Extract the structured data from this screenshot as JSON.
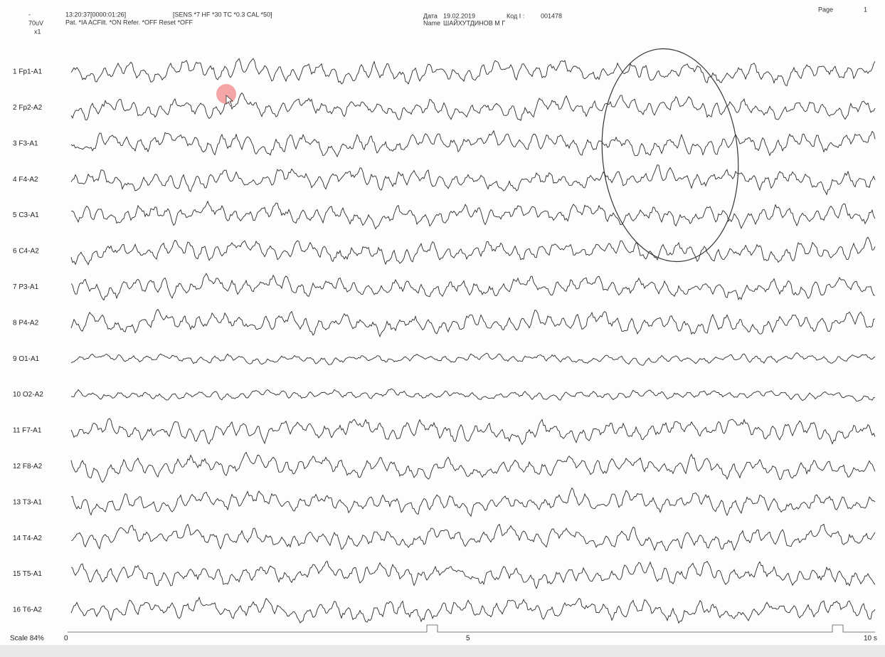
{
  "header": {
    "scale_unit": "70uV",
    "scale_factor": "x1",
    "time": "13:20:37[0000:01:26]",
    "settings": "[SENS *7  HF *30  TC *0.3  CAL *50]",
    "params": "Pat. *IA  ACFilt. *ON  Refer. *OFF  Reset *OFF",
    "date_label": "Дата",
    "date": "19.02.2019",
    "code_label": "Код I :",
    "code": "001478",
    "name_label": "Name",
    "name": "ШАЙХУТДИНОВ М Г",
    "page_label": "Page",
    "page": "1"
  },
  "channels": [
    "1  Fp1-A1",
    "2  Fp2-A2",
    "3  F3-A1",
    "4  F4-A2",
    "5  C3-A1",
    "6  C4-A2",
    "7  P3-A1",
    "8  P4-A2",
    "9  O1-A1",
    "10  O2-A2",
    "11  F7-A1",
    "12  F8-A2",
    "13  T3-A1",
    "14  T4-A2",
    "15  T5-A1",
    "16  T6-A2"
  ],
  "footer": {
    "scale": "Scale 84%",
    "time_start": "0",
    "time_mid": "5",
    "time_end": "10 s"
  }
}
